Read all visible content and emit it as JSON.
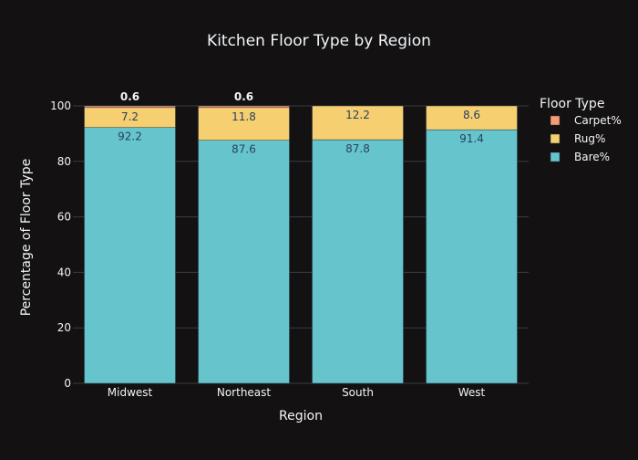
{
  "chart_data": {
    "type": "bar",
    "barmode": "stack",
    "title": "Kitchen Floor Type by Region",
    "xlabel": "Region",
    "ylabel": "Percentage of Floor Type",
    "categories": [
      "Midwest",
      "Northeast",
      "South",
      "West"
    ],
    "ylim": [
      0,
      100
    ],
    "yticks": [
      0,
      20,
      40,
      60,
      80,
      100
    ],
    "grid": true,
    "legend": {
      "title": "Floor Type",
      "placement": "top-right",
      "order": [
        "Carpet%",
        "Rug%",
        "Bare%"
      ]
    },
    "series": [
      {
        "name": "Bare%",
        "color": "#66c5cc",
        "values": [
          92.2,
          87.6,
          87.8,
          91.4
        ],
        "labels": [
          "92.2",
          "87.6",
          "87.8",
          "91.4"
        ]
      },
      {
        "name": "Rug%",
        "color": "#f6cf71",
        "values": [
          7.2,
          11.8,
          12.2,
          8.6
        ],
        "labels": [
          "7.2",
          "11.8",
          "12.2",
          "8.6"
        ]
      },
      {
        "name": "Carpet%",
        "color": "#f89c74",
        "values": [
          0.6,
          0.6,
          0,
          0
        ],
        "labels": [
          "0.6",
          "0.6",
          "",
          ""
        ]
      }
    ]
  },
  "colors": {
    "background": "#131111",
    "grid": "#3a3d44",
    "text": "#f2f5fa",
    "label_dark": "#2a3f5f",
    "bar_outline": "#283442"
  }
}
